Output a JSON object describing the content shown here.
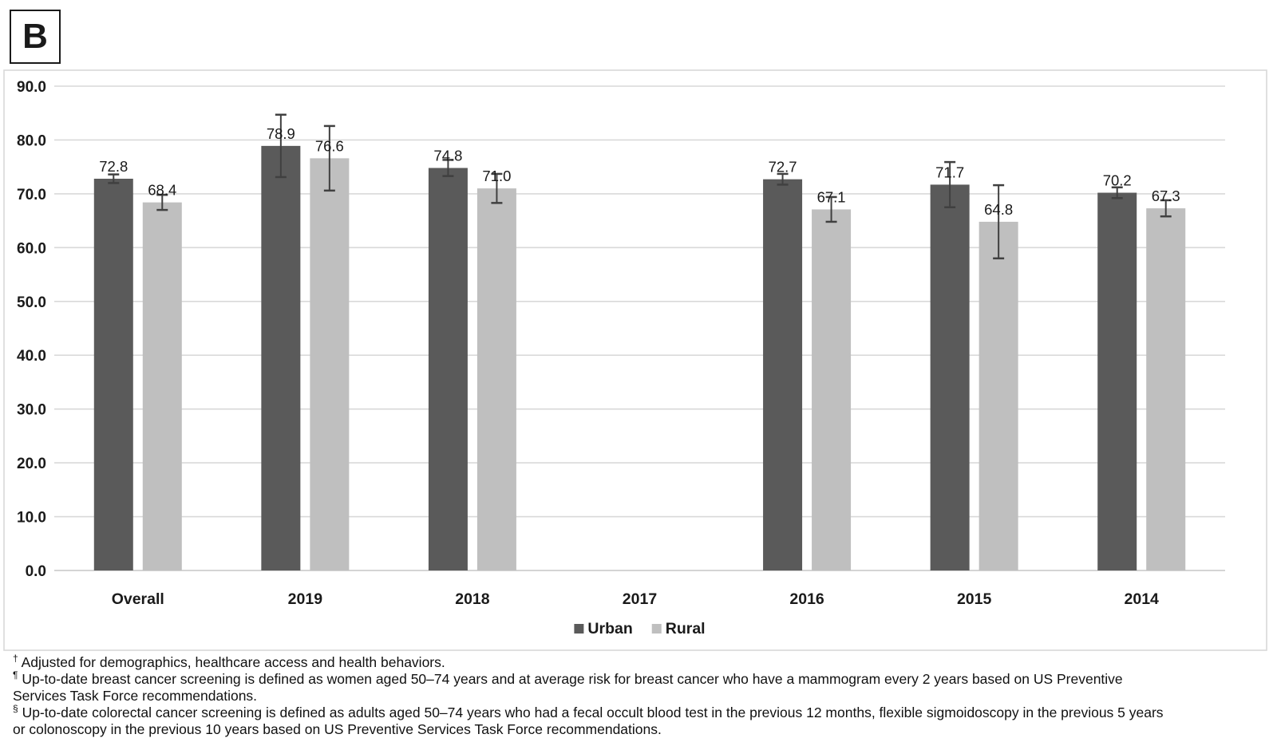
{
  "panel_label": "B",
  "colors": {
    "urban_bar": "#5a5a5a",
    "rural_bar": "#bfbfbf",
    "gridline": "#d9d9d9",
    "axis_line": "#c6c6c6",
    "error_bar": "#404040",
    "frame_border": "#d9d9d9",
    "text": "#1a1a1a"
  },
  "chart_data": {
    "type": "bar",
    "title": "",
    "xlabel": "",
    "ylabel": "",
    "categories": [
      "Overall",
      "2019",
      "2018",
      "2017",
      "2016",
      "2015",
      "2014"
    ],
    "series": [
      {
        "name": "Urban",
        "color": "#5a5a5a",
        "values": [
          72.8,
          78.9,
          74.8,
          null,
          72.7,
          71.7,
          70.2
        ],
        "errors": [
          0.8,
          5.8,
          1.5,
          null,
          1.0,
          4.2,
          1.0
        ],
        "labels": [
          "72.8",
          "78.9",
          "74.8",
          "",
          "72.7",
          "71.7",
          "70.2"
        ]
      },
      {
        "name": "Rural",
        "color": "#bfbfbf",
        "values": [
          68.4,
          76.6,
          71.0,
          null,
          67.1,
          64.8,
          67.3
        ],
        "errors": [
          1.4,
          6.0,
          2.7,
          null,
          2.3,
          6.8,
          1.5
        ],
        "labels": [
          "68.4",
          "76.6",
          "71.0",
          "",
          "67.1",
          "64.8",
          "67.3"
        ]
      }
    ],
    "ylim": [
      0,
      90
    ],
    "ytick_step": 10,
    "yticks": [
      "0.0",
      "10.0",
      "20.0",
      "30.0",
      "40.0",
      "50.0",
      "60.0",
      "70.0",
      "80.0",
      "90.0"
    ],
    "grid": true,
    "error_bars": true,
    "legend_position": "bottom",
    "legend": [
      "Urban",
      "Rural"
    ]
  },
  "footnotes": [
    {
      "marker": "†",
      "text": "Adjusted for demographics, healthcare access and health behaviors."
    },
    {
      "marker": "¶",
      "text": "Up-to-date breast cancer screening is defined as women aged 50–74 years and at average risk for breast cancer who have a mammogram every 2 years based on US Preventive Services Task Force recommendations."
    },
    {
      "marker": "§",
      "text": "Up-to-date colorectal cancer screening is defined as adults aged 50–74 years who had a fecal occult blood test in the previous 12 months, flexible sigmoidoscopy in the previous 5 years or colonoscopy in the previous 10 years based on US Preventive Services Task Force recommendations."
    }
  ]
}
